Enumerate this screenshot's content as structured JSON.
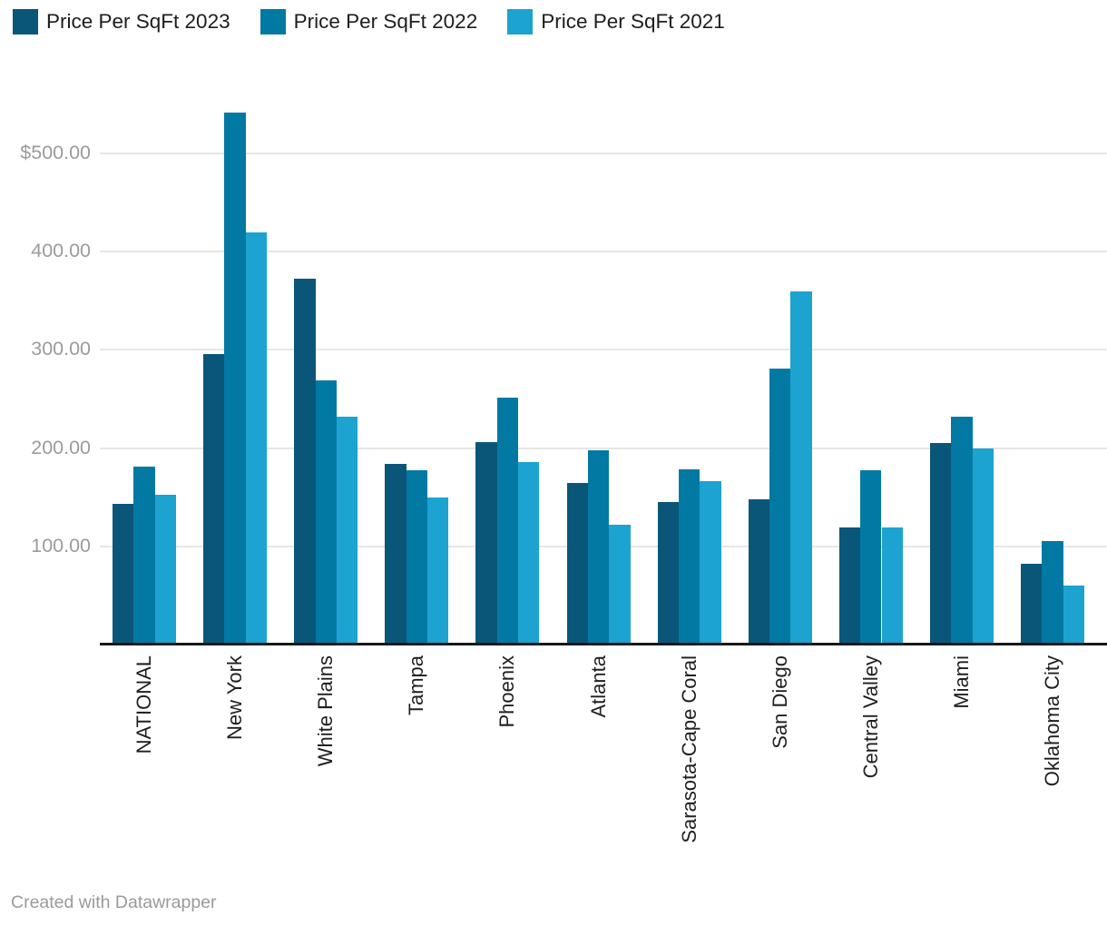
{
  "legend": {
    "items": [
      {
        "label": "Price Per SqFt 2023",
        "color": "#0a5679"
      },
      {
        "label": "Price Per SqFt 2022",
        "color": "#0279a3"
      },
      {
        "label": "Price Per SqFt 2021",
        "color": "#1ca3d0"
      }
    ]
  },
  "chart_data": {
    "type": "bar",
    "title": "",
    "xlabel": "",
    "ylabel": "",
    "grid": true,
    "legend_position": "top",
    "ylim": [
      0,
      550
    ],
    "categories": [
      "NATIONAL",
      "New York",
      "White Plains",
      "Tampa",
      "Phoenix",
      "Atlanta",
      "Sarasota-Cape Coral",
      "San Diego",
      "Central Valley",
      "Miami",
      "Oklahoma City"
    ],
    "series": [
      {
        "name": "Price Per SqFt 2023",
        "color": "#0a5679",
        "values": [
          143,
          296,
          372,
          184,
          206,
          164,
          145,
          148,
          119,
          205,
          82
        ]
      },
      {
        "name": "Price Per SqFt 2022",
        "color": "#0279a3",
        "values": [
          181,
          541,
          269,
          177,
          251,
          198,
          178,
          281,
          177,
          232,
          105
        ]
      },
      {
        "name": "Price Per SqFt 2021",
        "color": "#1ca3d0",
        "values": [
          152,
          419,
          232,
          150,
          186,
          122,
          166,
          359,
          119,
          200,
          60
        ]
      }
    ],
    "yticks": [
      {
        "value": 500,
        "label": "$500.00"
      },
      {
        "value": 400,
        "label": "400.00"
      },
      {
        "value": 300,
        "label": "300.00"
      },
      {
        "value": 200,
        "label": "200.00"
      },
      {
        "value": 100,
        "label": "100.00"
      }
    ]
  },
  "footer": {
    "credit": "Created with Datawrapper"
  },
  "colors": {
    "background": "#ffffff",
    "grid": "#e6e6e6",
    "axis_line": "#18181a",
    "ytick_text": "#9b9b9b",
    "xtick_text": "#1f1f1f",
    "footer_text": "#9a9a9a"
  }
}
